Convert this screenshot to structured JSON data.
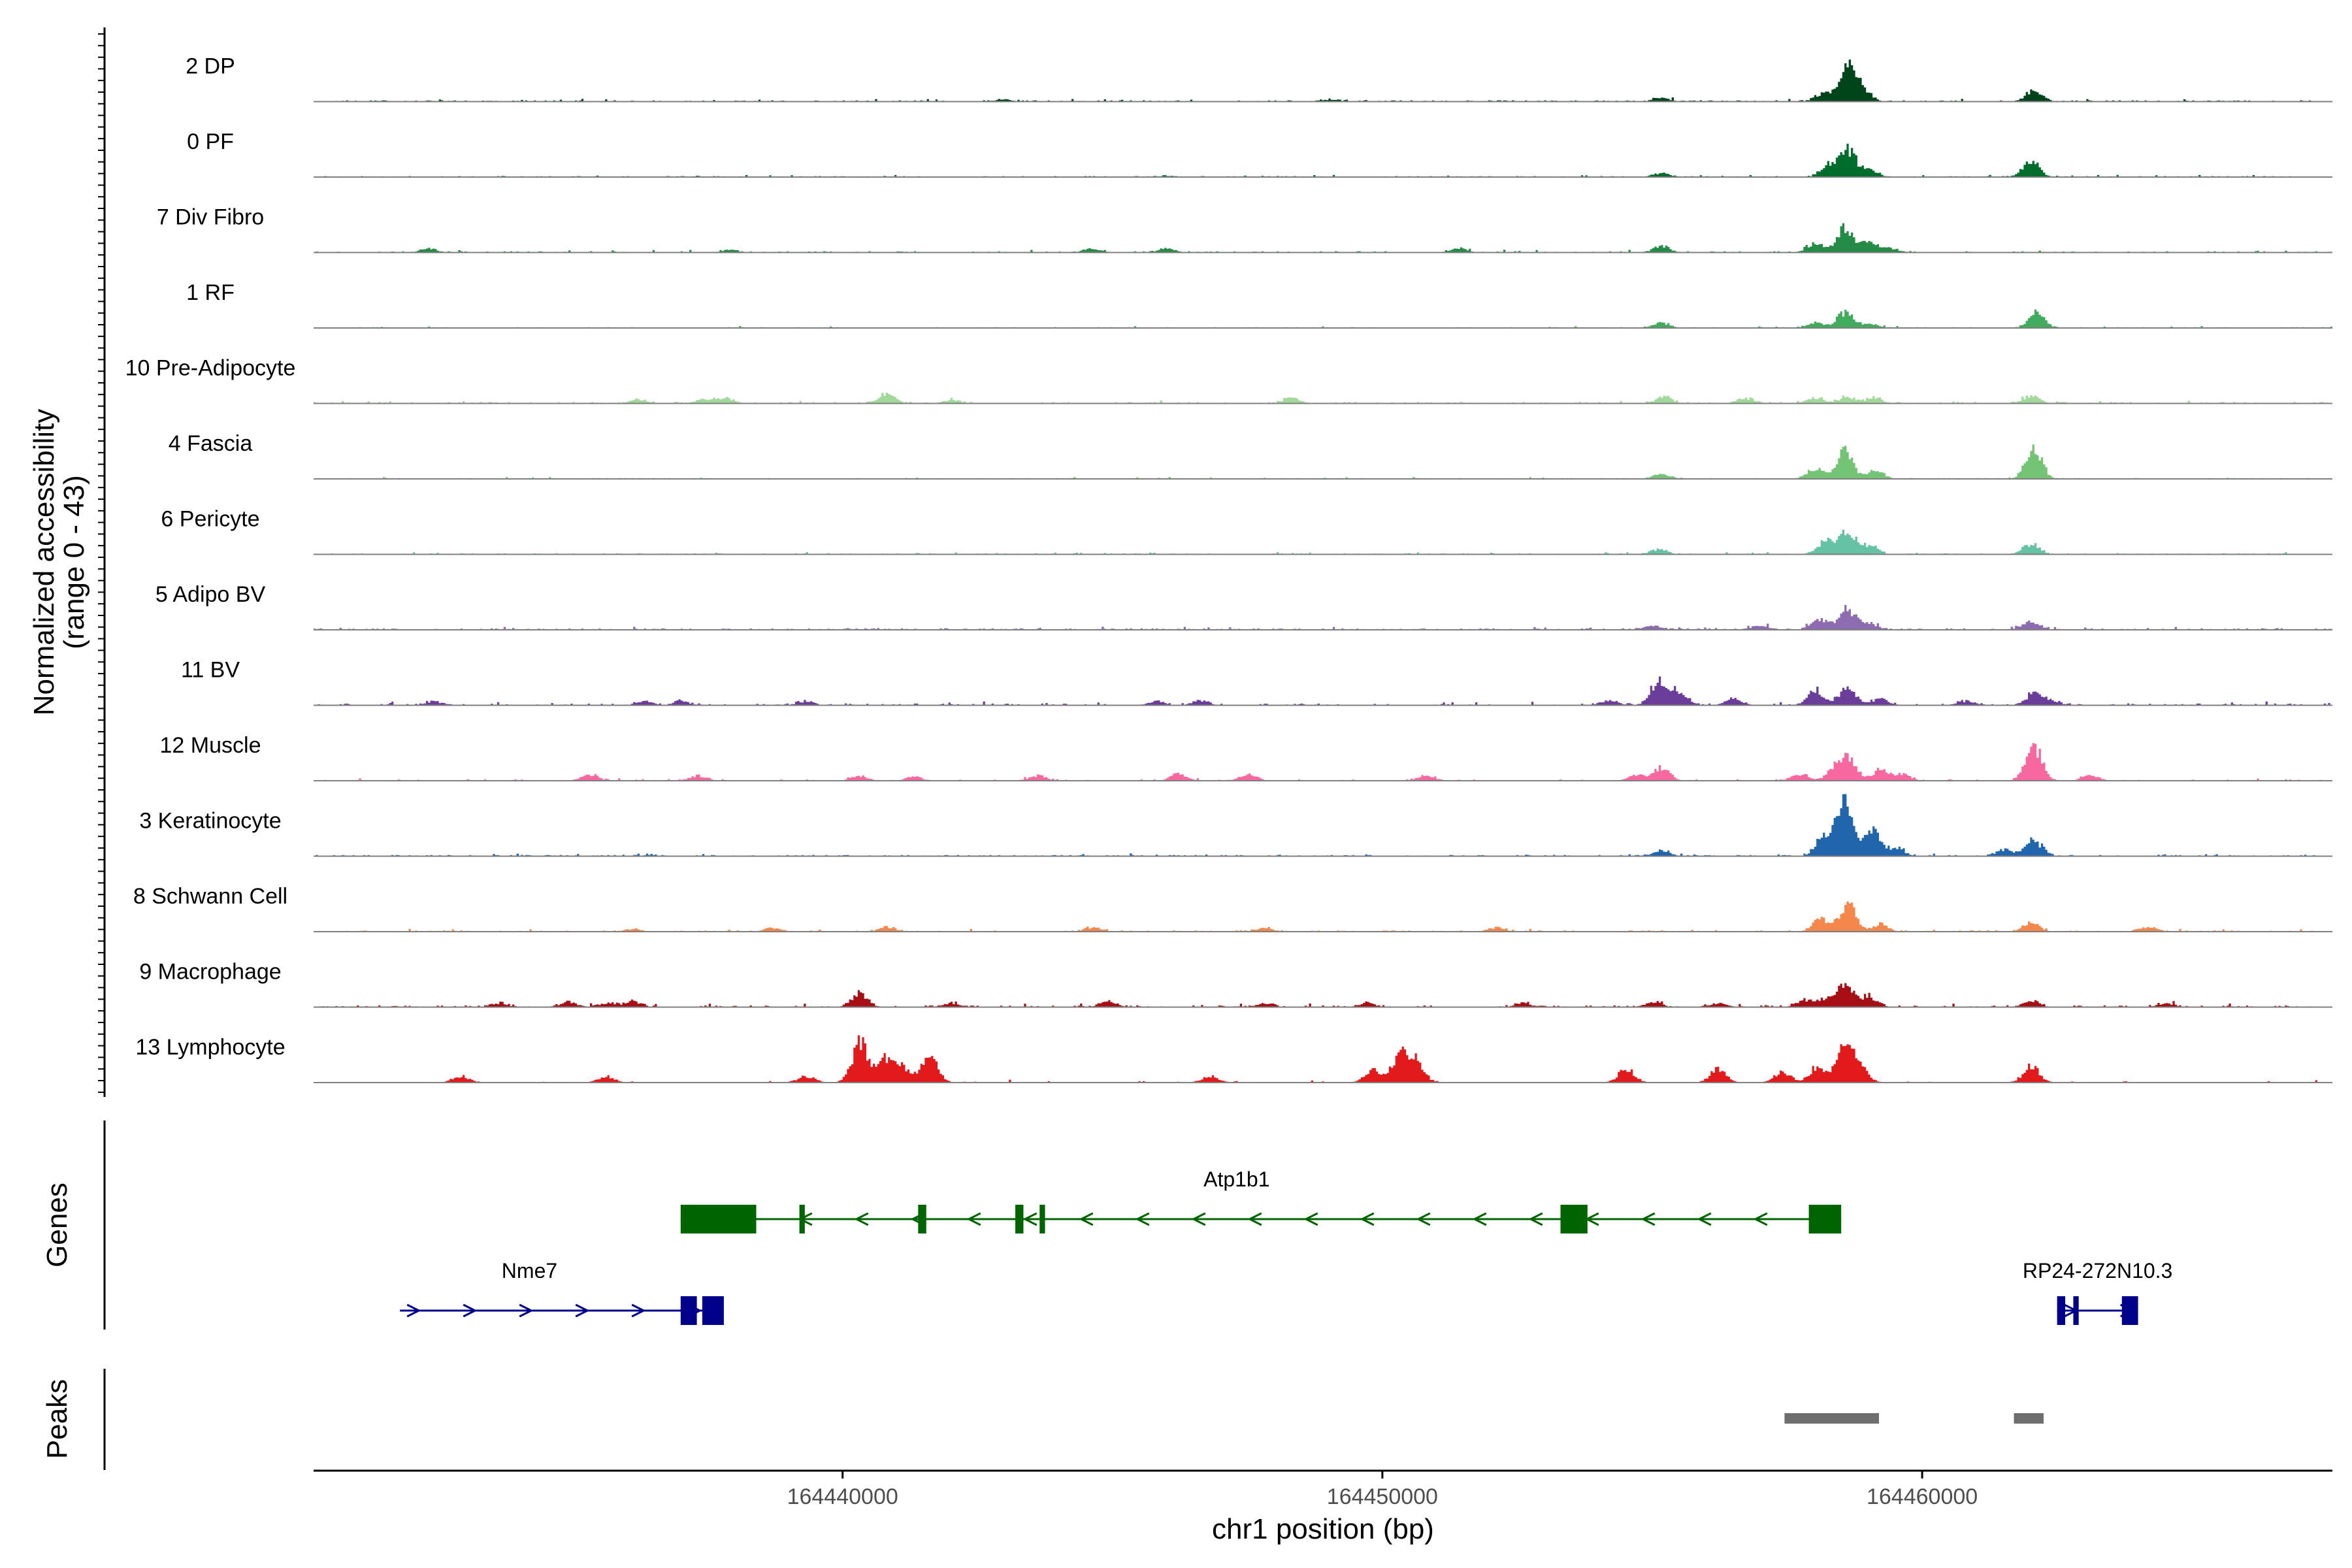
{
  "chart_data": {
    "type": "area",
    "title": "",
    "xlabel": "chr1 position (bp)",
    "ylabel": "Normalized accessibility\n(range 0 - 43)",
    "y_range": [
      0,
      43
    ],
    "x_range": [
      164430200,
      164467600
    ],
    "x_ticks": [
      {
        "value": 164440000,
        "label": "164440000"
      },
      {
        "value": 164450000,
        "label": "164450000"
      },
      {
        "value": 164460000,
        "label": "164460000"
      }
    ],
    "series": [
      {
        "name": "2 DP",
        "color": "#00441B",
        "noise": 0.9,
        "density": 0.55,
        "peaks": [
          [
            164455150,
            3
          ],
          [
            164458150,
            6
          ],
          [
            164458500,
            5
          ],
          [
            164458650,
            22
          ],
          [
            164458900,
            6
          ],
          [
            164462050,
            8
          ],
          [
            164449000,
            1.5
          ],
          [
            164443000,
            1.5
          ]
        ]
      },
      {
        "name": "0 PF",
        "color": "#006D2C",
        "noise": 0.7,
        "density": 0.5,
        "peaks": [
          [
            164455150,
            3
          ],
          [
            164458250,
            9
          ],
          [
            164458600,
            21
          ],
          [
            164459000,
            5
          ],
          [
            164462000,
            12
          ],
          [
            164446000,
            1
          ]
        ]
      },
      {
        "name": "7 Div Fibro",
        "color": "#238B45",
        "noise": 0.9,
        "density": 0.3,
        "peaks": [
          [
            164432300,
            3
          ],
          [
            164437900,
            2
          ],
          [
            164444600,
            3
          ],
          [
            164446000,
            3
          ],
          [
            164451400,
            3
          ],
          [
            164455150,
            5
          ],
          [
            164458000,
            7
          ],
          [
            164458550,
            18
          ],
          [
            164459000,
            8
          ],
          [
            164459400,
            3
          ]
        ]
      },
      {
        "name": "1 RF",
        "color": "#41AB5D",
        "noise": 0.6,
        "density": 0.45,
        "peaks": [
          [
            164455150,
            4
          ],
          [
            164458000,
            4
          ],
          [
            164458550,
            12
          ],
          [
            164459000,
            3
          ],
          [
            164462100,
            11
          ]
        ]
      },
      {
        "name": "10 Pre-Adipocyte",
        "color": "#A1D99B",
        "noise": 1.0,
        "density": 0.35,
        "peaks": [
          [
            164436200,
            3
          ],
          [
            164437400,
            3
          ],
          [
            164437800,
            4
          ],
          [
            164440800,
            7
          ],
          [
            164442000,
            3
          ],
          [
            164448300,
            4
          ],
          [
            164455200,
            5
          ],
          [
            164456700,
            4
          ],
          [
            164458000,
            4
          ],
          [
            164458600,
            5
          ],
          [
            164459100,
            4
          ],
          [
            164462000,
            6
          ]
        ]
      },
      {
        "name": "4 Fascia",
        "color": "#74C476",
        "noise": 0.6,
        "density": 0.45,
        "peaks": [
          [
            164455150,
            4
          ],
          [
            164458000,
            8
          ],
          [
            164458550,
            20
          ],
          [
            164459100,
            7
          ],
          [
            164462050,
            22
          ]
        ]
      },
      {
        "name": "6 Pericyte",
        "color": "#66C2A4",
        "noise": 0.7,
        "density": 0.5,
        "peaks": [
          [
            164455100,
            4
          ],
          [
            164458200,
            10
          ],
          [
            164458600,
            16
          ],
          [
            164459000,
            7
          ],
          [
            164462000,
            8
          ]
        ]
      },
      {
        "name": "5 Adipo BV",
        "color": "#8C6BB1",
        "noise": 1.0,
        "density": 0.55,
        "peaks": [
          [
            164455000,
            3
          ],
          [
            164457000,
            3
          ],
          [
            164458100,
            8
          ],
          [
            164458600,
            15
          ],
          [
            164459000,
            5
          ],
          [
            164462000,
            6
          ]
        ]
      },
      {
        "name": "11 BV",
        "color": "#6A3D9A",
        "noise": 1.2,
        "density": 0.3,
        "peaks": [
          [
            164432400,
            3
          ],
          [
            164436300,
            3
          ],
          [
            164437000,
            3
          ],
          [
            164439300,
            3
          ],
          [
            164445800,
            3
          ],
          [
            164446600,
            3
          ],
          [
            164454200,
            4
          ],
          [
            164455100,
            19
          ],
          [
            164455500,
            10
          ],
          [
            164456500,
            5
          ],
          [
            164458000,
            12
          ],
          [
            164458600,
            13
          ],
          [
            164459200,
            5
          ],
          [
            164460800,
            3
          ],
          [
            164462050,
            9
          ],
          [
            164462400,
            3
          ]
        ]
      },
      {
        "name": "12 Muscle",
        "color": "#F768A1",
        "noise": 1.0,
        "density": 0.15,
        "peaks": [
          [
            164435300,
            5
          ],
          [
            164437300,
            4
          ],
          [
            164440300,
            4
          ],
          [
            164441300,
            3
          ],
          [
            164443600,
            4
          ],
          [
            164446200,
            5
          ],
          [
            164447500,
            5
          ],
          [
            164450800,
            4
          ],
          [
            164454700,
            4
          ],
          [
            164455150,
            10
          ],
          [
            164457700,
            5
          ],
          [
            164458350,
            8
          ],
          [
            164458600,
            16
          ],
          [
            164459200,
            8
          ],
          [
            164459600,
            5
          ],
          [
            164462050,
            27
          ],
          [
            164463100,
            4
          ]
        ]
      },
      {
        "name": "3 Keratinocyte",
        "color": "#2166AC",
        "noise": 0.9,
        "density": 0.5,
        "peaks": [
          [
            164455150,
            4
          ],
          [
            164458150,
            14
          ],
          [
            164458550,
            40
          ],
          [
            164459050,
            20
          ],
          [
            164459500,
            6
          ],
          [
            164461500,
            5
          ],
          [
            164462050,
            12
          ]
        ]
      },
      {
        "name": "8 Schwann Cell",
        "color": "#F4874B",
        "noise": 0.9,
        "density": 0.4,
        "peaks": [
          [
            164436100,
            2
          ],
          [
            164438700,
            3
          ],
          [
            164440800,
            3
          ],
          [
            164444600,
            3
          ],
          [
            164447800,
            3
          ],
          [
            164452100,
            3
          ],
          [
            164458100,
            9
          ],
          [
            164458600,
            22
          ],
          [
            164459200,
            5
          ],
          [
            164462000,
            7
          ],
          [
            164464200,
            4
          ]
        ]
      },
      {
        "name": "9 Macrophage",
        "color": "#A50F15",
        "noise": 1.2,
        "density": 0.3,
        "peaks": [
          [
            164433600,
            3
          ],
          [
            164434900,
            4
          ],
          [
            164435600,
            3
          ],
          [
            164436100,
            4
          ],
          [
            164440300,
            10
          ],
          [
            164442000,
            3
          ],
          [
            164444900,
            5
          ],
          [
            164447800,
            3
          ],
          [
            164449700,
            3
          ],
          [
            164452600,
            3
          ],
          [
            164455000,
            4
          ],
          [
            164456200,
            3
          ],
          [
            164457800,
            5
          ],
          [
            164458200,
            6
          ],
          [
            164458550,
            16
          ],
          [
            164459000,
            8
          ],
          [
            164462000,
            5
          ],
          [
            164464500,
            3
          ]
        ]
      },
      {
        "name": "13 Lymphocyte",
        "color": "#E31A1C",
        "noise": 1.0,
        "density": 0.06,
        "peaks": [
          [
            164432900,
            5
          ],
          [
            164435600,
            5
          ],
          [
            164439300,
            5
          ],
          [
            164440300,
            30
          ],
          [
            164440800,
            18
          ],
          [
            164441100,
            10
          ],
          [
            164441600,
            20
          ],
          [
            164446800,
            5
          ],
          [
            164449800,
            10
          ],
          [
            164450300,
            20
          ],
          [
            164450600,
            16
          ],
          [
            164454500,
            10
          ],
          [
            164456200,
            10
          ],
          [
            164457400,
            8
          ],
          [
            164458050,
            12
          ],
          [
            164458550,
            30
          ],
          [
            164458850,
            10
          ],
          [
            164462000,
            12
          ]
        ]
      }
    ],
    "genes": [
      {
        "name": "Atp1b1",
        "strand": "-",
        "start": 164437000,
        "end": 164458500,
        "exons": [
          [
            164437000,
            164438400
          ],
          [
            164439200,
            164439300
          ],
          [
            164441400,
            164441550
          ],
          [
            164443200,
            164443350
          ],
          [
            164443650,
            164443750
          ],
          [
            164453300,
            164453800
          ],
          [
            164457900,
            164458500
          ]
        ],
        "color": "#006400"
      },
      {
        "name": "Nme7",
        "strand": "+",
        "start": 164431800,
        "end": 164437500,
        "exons": [
          [
            164437000,
            164437300
          ],
          [
            164437400,
            164437800
          ]
        ],
        "color": "#00008B"
      },
      {
        "name": "RP24-272N10.3",
        "strand": "+",
        "start": 164462500,
        "end": 164464000,
        "exons": [
          [
            164462500,
            164462650
          ],
          [
            164462800,
            164462900
          ],
          [
            164463700,
            164464000
          ]
        ],
        "color": "#00008B"
      }
    ],
    "peaks": [
      {
        "start": 164457450,
        "end": 164459200
      },
      {
        "start": 164461700,
        "end": 164462250
      }
    ],
    "panel_labels": {
      "genes": "Genes",
      "peaks": "Peaks"
    }
  }
}
